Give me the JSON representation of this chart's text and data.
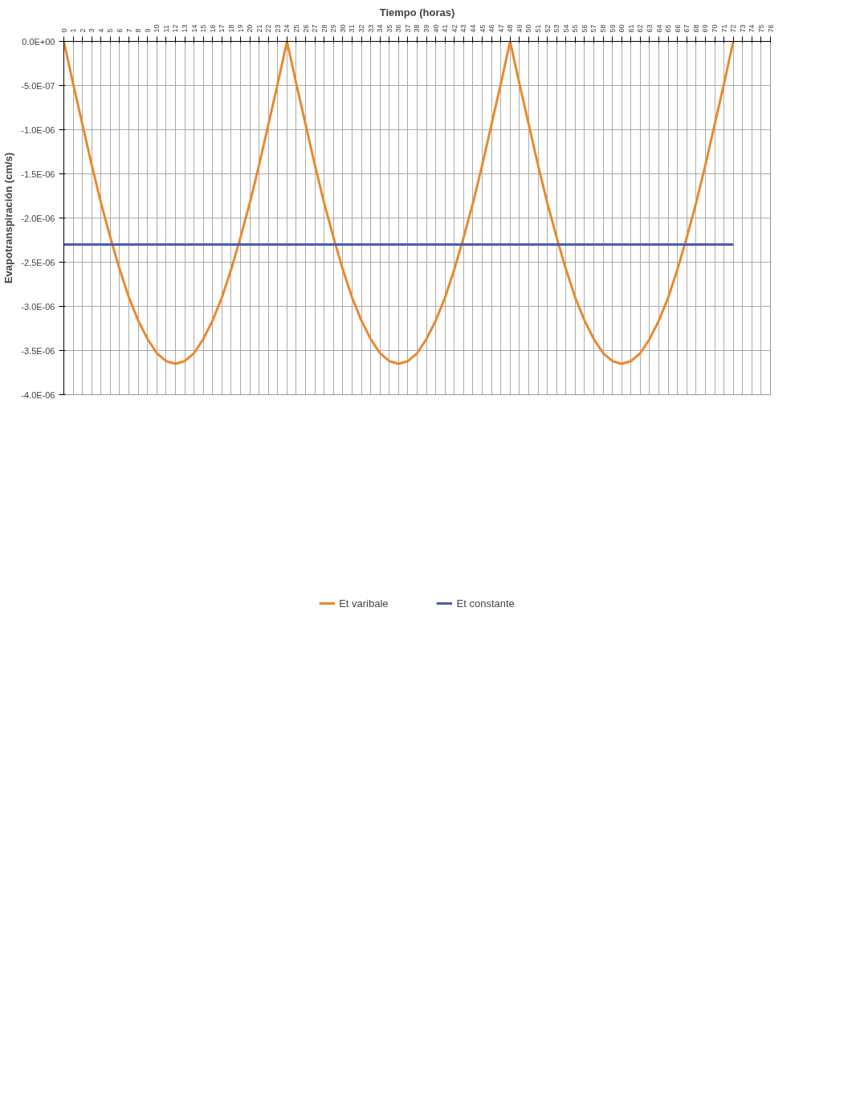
{
  "chart_data": {
    "type": "line",
    "title": "Tiempo (horas)",
    "ylabel": "Evapotranspiración (cm/s)",
    "x": [
      0,
      1,
      2,
      3,
      4,
      5,
      6,
      7,
      8,
      9,
      10,
      11,
      12,
      13,
      14,
      15,
      16,
      17,
      18,
      19,
      20,
      21,
      22,
      23,
      24,
      25,
      26,
      27,
      28,
      29,
      30,
      31,
      32,
      33,
      34,
      35,
      36,
      37,
      38,
      39,
      40,
      41,
      42,
      43,
      44,
      45,
      46,
      47,
      48,
      49,
      50,
      51,
      52,
      53,
      54,
      55,
      56,
      57,
      58,
      59,
      60,
      61,
      62,
      63,
      64,
      65,
      66,
      67,
      68,
      69,
      70,
      71,
      72
    ],
    "series": [
      {
        "name": "Et varibale",
        "color": "#e8892e",
        "values": [
          0,
          -4.8e-07,
          -9.4e-07,
          -1.4e-06,
          -1.83e-06,
          -2.22e-06,
          -2.58e-06,
          -2.9e-06,
          -3.16e-06,
          -3.37e-06,
          -3.53e-06,
          -3.62e-06,
          -3.65e-06,
          -3.62e-06,
          -3.53e-06,
          -3.37e-06,
          -3.16e-06,
          -2.9e-06,
          -2.58e-06,
          -2.22e-06,
          -1.83e-06,
          -1.4e-06,
          -9.4e-07,
          -4.8e-07,
          0,
          -4.8e-07,
          -9.4e-07,
          -1.4e-06,
          -1.83e-06,
          -2.22e-06,
          -2.58e-06,
          -2.9e-06,
          -3.16e-06,
          -3.37e-06,
          -3.53e-06,
          -3.62e-06,
          -3.65e-06,
          -3.62e-06,
          -3.53e-06,
          -3.37e-06,
          -3.16e-06,
          -2.9e-06,
          -2.58e-06,
          -2.22e-06,
          -1.83e-06,
          -1.4e-06,
          -9.4e-07,
          -4.8e-07,
          0,
          -4.8e-07,
          -9.4e-07,
          -1.4e-06,
          -1.83e-06,
          -2.22e-06,
          -2.58e-06,
          -2.9e-06,
          -3.16e-06,
          -3.37e-06,
          -3.53e-06,
          -3.62e-06,
          -3.65e-06,
          -3.62e-06,
          -3.53e-06,
          -3.37e-06,
          -3.16e-06,
          -2.9e-06,
          -2.58e-06,
          -2.22e-06,
          -1.83e-06,
          -1.4e-06,
          -9.4e-07,
          -4.8e-07,
          0
        ]
      },
      {
        "name": "Et constante",
        "color": "#4a5bb0",
        "values": [
          -2.3e-06,
          -2.3e-06,
          -2.3e-06,
          -2.3e-06,
          -2.3e-06,
          -2.3e-06,
          -2.3e-06,
          -2.3e-06,
          -2.3e-06,
          -2.3e-06,
          -2.3e-06,
          -2.3e-06,
          -2.3e-06,
          -2.3e-06,
          -2.3e-06,
          -2.3e-06,
          -2.3e-06,
          -2.3e-06,
          -2.3e-06,
          -2.3e-06,
          -2.3e-06,
          -2.3e-06,
          -2.3e-06,
          -2.3e-06,
          -2.3e-06,
          -2.3e-06,
          -2.3e-06,
          -2.3e-06,
          -2.3e-06,
          -2.3e-06,
          -2.3e-06,
          -2.3e-06,
          -2.3e-06,
          -2.3e-06,
          -2.3e-06,
          -2.3e-06,
          -2.3e-06,
          -2.3e-06,
          -2.3e-06,
          -2.3e-06,
          -2.3e-06,
          -2.3e-06,
          -2.3e-06,
          -2.3e-06,
          -2.3e-06,
          -2.3e-06,
          -2.3e-06,
          -2.3e-06,
          -2.3e-06,
          -2.3e-06,
          -2.3e-06,
          -2.3e-06,
          -2.3e-06,
          -2.3e-06,
          -2.3e-06,
          -2.3e-06,
          -2.3e-06,
          -2.3e-06,
          -2.3e-06,
          -2.3e-06,
          -2.3e-06,
          -2.3e-06,
          -2.3e-06,
          -2.3e-06,
          -2.3e-06,
          -2.3e-06,
          -2.3e-06,
          -2.3e-06,
          -2.3e-06,
          -2.3e-06,
          -2.3e-06,
          -2.3e-06,
          -2.3e-06
        ]
      }
    ],
    "xlim": [
      0,
      76
    ],
    "xticks": [
      0,
      1,
      2,
      3,
      4,
      5,
      6,
      7,
      8,
      9,
      10,
      11,
      12,
      13,
      14,
      15,
      16,
      17,
      18,
      19,
      20,
      21,
      22,
      23,
      24,
      25,
      26,
      27,
      28,
      29,
      30,
      31,
      32,
      33,
      34,
      35,
      36,
      37,
      38,
      39,
      40,
      41,
      42,
      43,
      44,
      45,
      46,
      47,
      48,
      49,
      50,
      51,
      52,
      53,
      54,
      55,
      56,
      57,
      58,
      59,
      60,
      61,
      62,
      63,
      64,
      65,
      66,
      67,
      68,
      69,
      70,
      71,
      72,
      73,
      74,
      75,
      76
    ],
    "ylim": [
      -4e-06,
      0
    ],
    "yticks": [
      {
        "value": 0,
        "label": "0.0E+00"
      },
      {
        "value": -5e-07,
        "label": "-5.0E-07"
      },
      {
        "value": -1e-06,
        "label": "-1.0E-06"
      },
      {
        "value": -1.5e-06,
        "label": "-1.5E-06"
      },
      {
        "value": -2e-06,
        "label": "-2.0E-06"
      },
      {
        "value": -2.5e-06,
        "label": "-2.5E-06"
      },
      {
        "value": -3e-06,
        "label": "-3.0E-06"
      },
      {
        "value": -3.5e-06,
        "label": "-3.5E-06"
      },
      {
        "value": -4e-06,
        "label": "-4.0E-06"
      }
    ],
    "grid": true,
    "legend": "bottom",
    "marker": "none",
    "line_style": "solid"
  }
}
